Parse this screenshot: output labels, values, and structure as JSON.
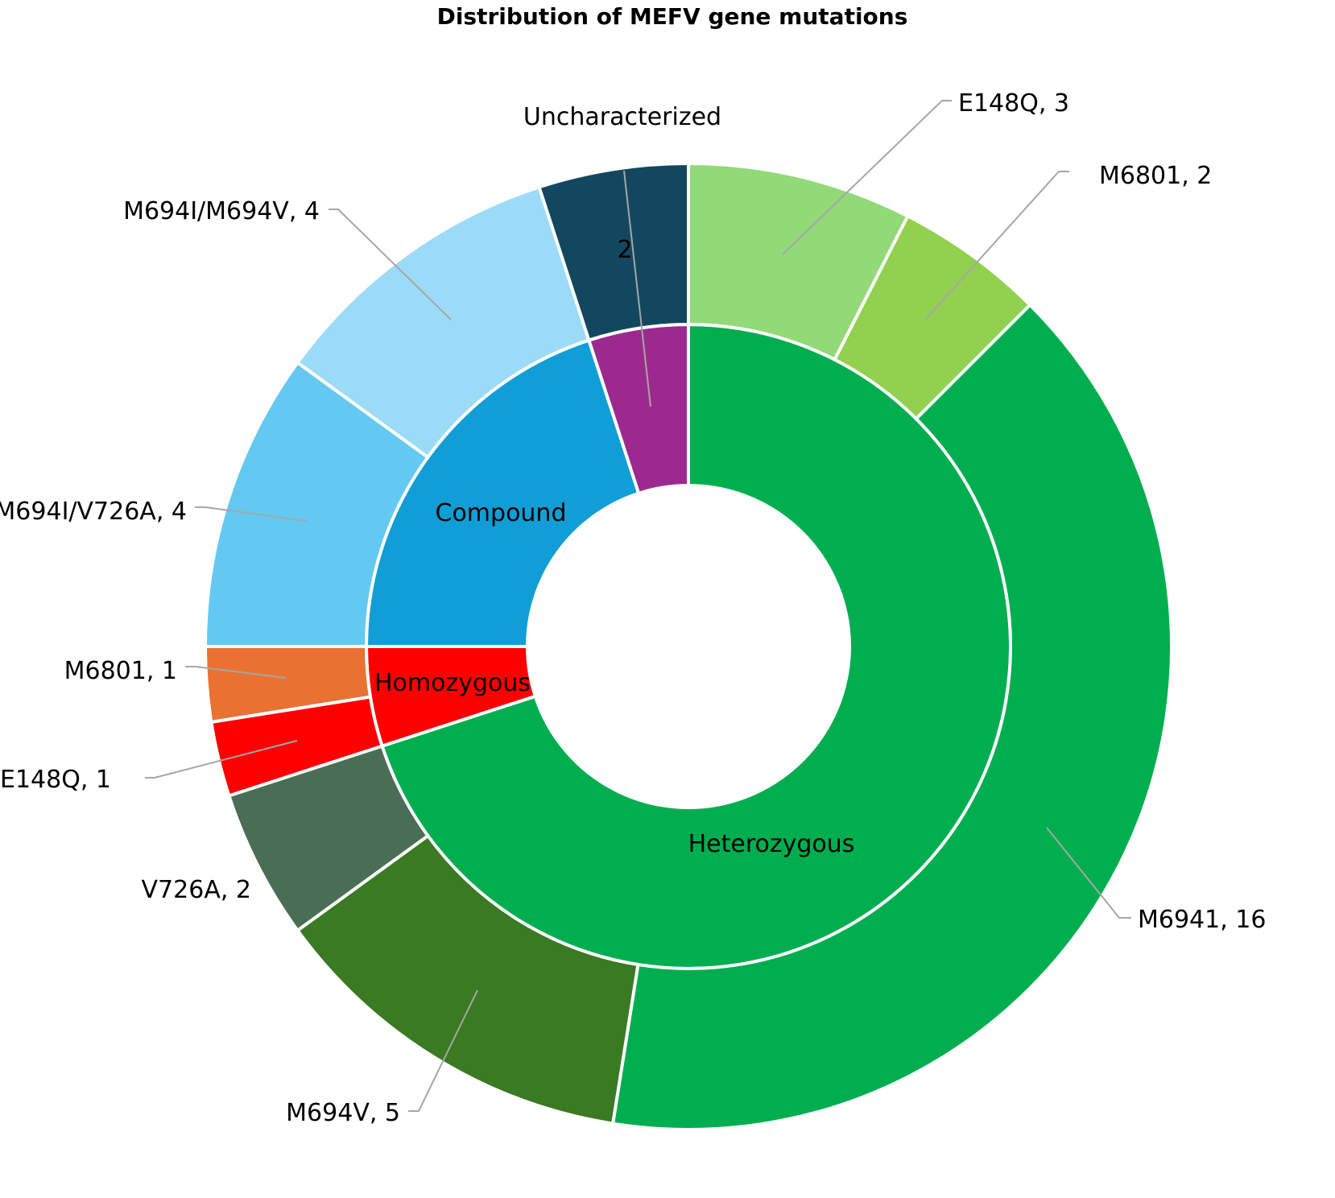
{
  "chart_data": {
    "type": "sunburst",
    "title": "Distribution of MEFV gene mutations",
    "inner": [
      {
        "name": "Heterozygous",
        "value": 28,
        "color": "#00ae4f"
      },
      {
        "name": "Homozygous",
        "value": 2,
        "color": "#ff0000"
      },
      {
        "name": "Compound",
        "value": 8,
        "color": "#119ed6"
      },
      {
        "name": "Uncharacterized",
        "value": 2,
        "color": "#9c2a8e"
      }
    ],
    "outer": [
      {
        "name": "E148Q",
        "value": 3,
        "parent": "Heterozygous",
        "label": "E148Q, 3",
        "color": "#92d978"
      },
      {
        "name": "M6801",
        "value": 2,
        "parent": "Heterozygous",
        "label": "M6801, 2",
        "color": "#92d050"
      },
      {
        "name": "M6941",
        "value": 16,
        "parent": "Heterozygous",
        "label": "M6941, 16",
        "color": "#00ae4f"
      },
      {
        "name": "M694V",
        "value": 5,
        "parent": "Heterozygous",
        "label": "M694V, 5",
        "color": "#3a7a22"
      },
      {
        "name": "V726A",
        "value": 2,
        "parent": "Heterozygous",
        "label": "V726A, 2",
        "color": "#4a6e55"
      },
      {
        "name": "E148Q",
        "value": 1,
        "parent": "Homozygous",
        "label": "E148Q, 1",
        "color": "#ff0000"
      },
      {
        "name": "M6801",
        "value": 1,
        "parent": "Homozygous",
        "label": "M6801, 1",
        "color": "#e97132"
      },
      {
        "name": "M694I/V726A",
        "value": 4,
        "parent": "Compound",
        "label": "M694I/V726A, 4",
        "color": "#63c9f2"
      },
      {
        "name": "M694I/M694V",
        "value": 4,
        "parent": "Compound",
        "label": "M694I/M694V, 4",
        "color": "#9bdbf7"
      },
      {
        "name": "Uncharacterized",
        "value": 2,
        "parent": "Uncharacterized",
        "label": "2",
        "color": "#12475f"
      }
    ]
  }
}
